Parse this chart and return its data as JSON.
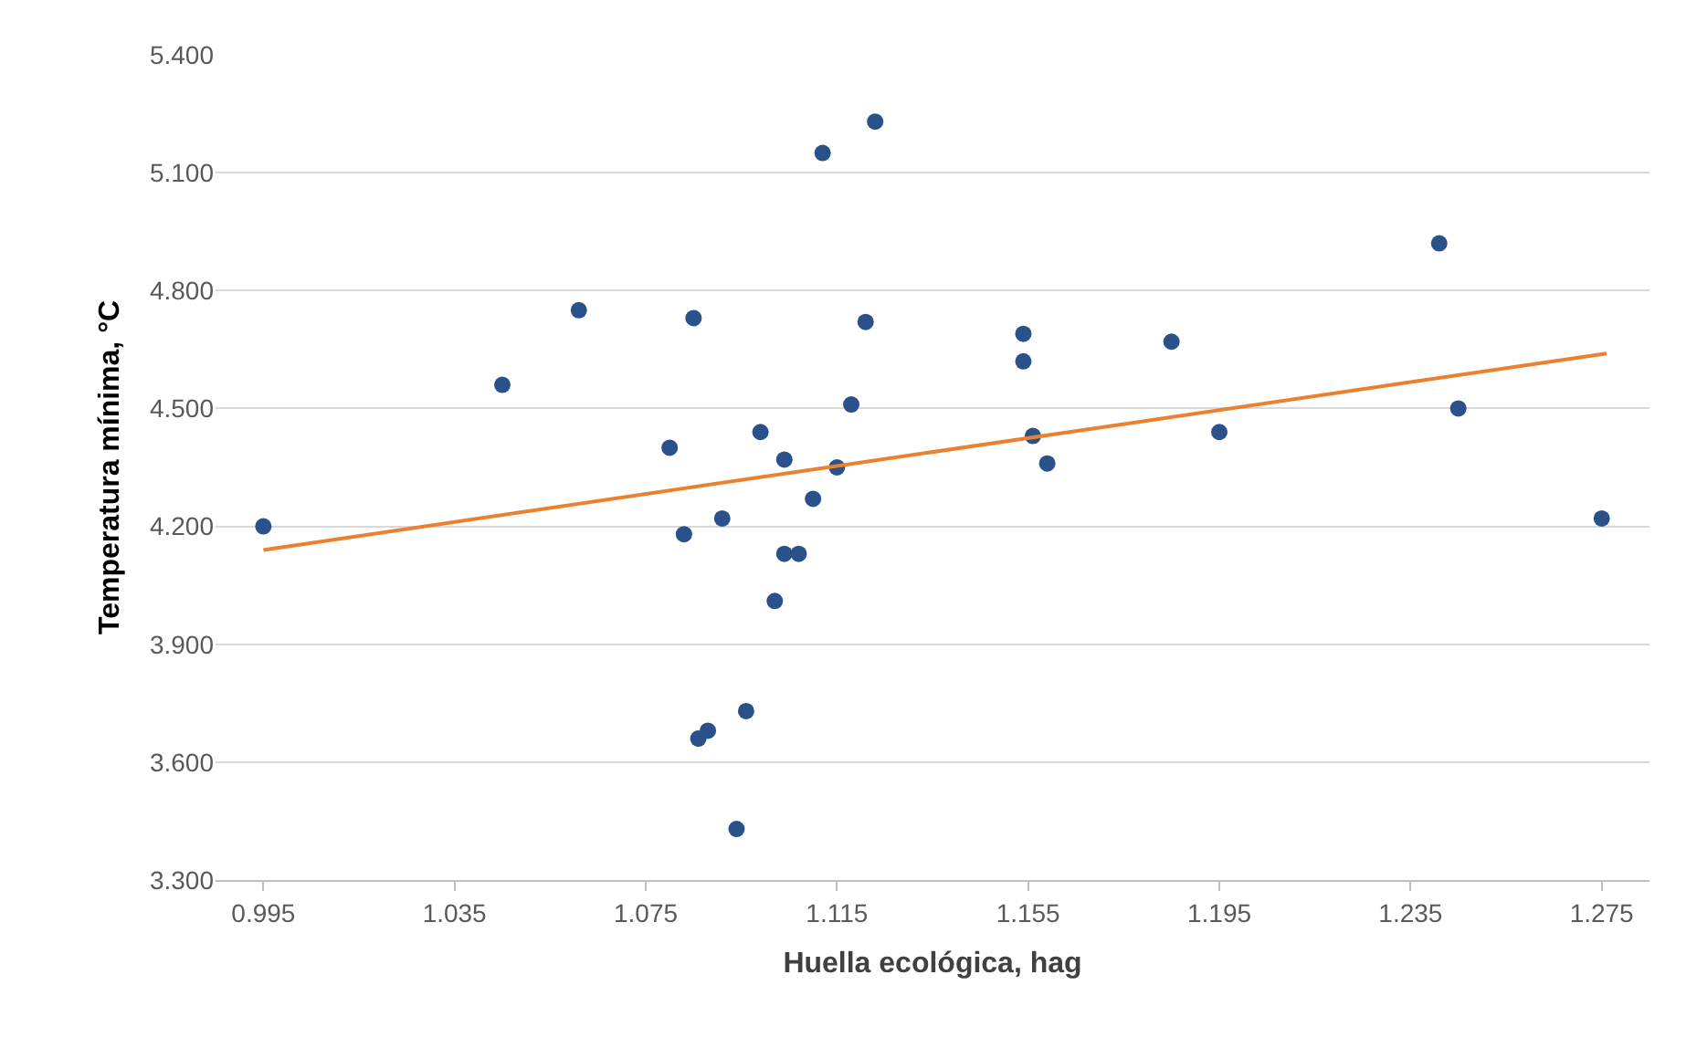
{
  "chart_data": {
    "type": "scatter",
    "xlabel": "Huella ecológica, hag",
    "ylabel": "Temperatura mínima, °C",
    "series": [
      {
        "color": "#2a5189",
        "marker": "circle",
        "x": [
          0.995,
          1.045,
          1.061,
          1.08,
          1.083,
          1.085,
          1.086,
          1.088,
          1.091,
          1.094,
          1.096,
          1.099,
          1.102,
          1.104,
          1.104,
          1.107,
          1.11,
          1.112,
          1.115,
          1.118,
          1.121,
          1.123,
          1.154,
          1.154,
          1.156,
          1.159,
          1.185,
          1.195,
          1.241,
          1.245,
          1.275
        ],
        "values": [
          4.2,
          4.56,
          4.75,
          4.4,
          4.18,
          4.73,
          3.66,
          3.68,
          4.22,
          3.43,
          3.73,
          4.44,
          4.01,
          4.37,
          4.13,
          4.13,
          4.27,
          5.15,
          4.35,
          4.51,
          4.72,
          5.23,
          4.69,
          4.62,
          4.43,
          4.36,
          4.67,
          4.44,
          4.92,
          4.5,
          4.22
        ]
      },
      {
        "type": "line",
        "color": "#e9812f",
        "marker": "none",
        "line_style": "solid",
        "x": [
          0.995,
          1.276
        ],
        "values": [
          4.14,
          4.64
        ]
      }
    ],
    "xlim": [
      0.985,
      1.285
    ],
    "xticks": [
      0.995,
      1.035,
      1.075,
      1.115,
      1.155,
      1.195,
      1.235,
      1.275
    ],
    "ylim": [
      3.3,
      5.4
    ],
    "yticks": [
      {
        "value": 3.3,
        "label": "3.300"
      },
      {
        "value": 3.6,
        "label": "3.600"
      },
      {
        "value": 3.9,
        "label": "3.900"
      },
      {
        "value": 4.2,
        "label": "4.200"
      },
      {
        "value": 4.5,
        "label": "4.500"
      },
      {
        "value": 4.8,
        "label": "4.800"
      },
      {
        "value": 5.1,
        "label": "5.100"
      },
      {
        "value": 5.4,
        "label": "5.400"
      }
    ],
    "grid": "y"
  }
}
